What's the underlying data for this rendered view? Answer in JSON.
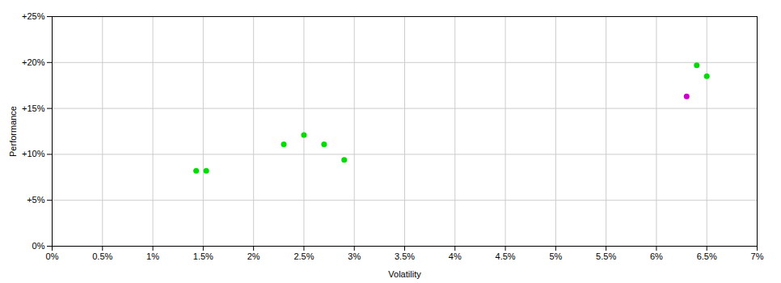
{
  "chart_data": {
    "type": "scatter",
    "xlabel": "Volatility",
    "ylabel": "Performance",
    "xlim": [
      0.0,
      0.07
    ],
    "ylim": [
      0.0,
      0.25
    ],
    "xticks": [
      {
        "value": 0.0,
        "label": "0%"
      },
      {
        "value": 0.005,
        "label": "0.5%"
      },
      {
        "value": 0.01,
        "label": "1%"
      },
      {
        "value": 0.015,
        "label": "1.5%"
      },
      {
        "value": 0.02,
        "label": "2%"
      },
      {
        "value": 0.025,
        "label": "2.5%"
      },
      {
        "value": 0.03,
        "label": "3%"
      },
      {
        "value": 0.035,
        "label": "3.5%"
      },
      {
        "value": 0.04,
        "label": "4%"
      },
      {
        "value": 0.045,
        "label": "4.5%"
      },
      {
        "value": 0.05,
        "label": "5%"
      },
      {
        "value": 0.055,
        "label": "5.5%"
      },
      {
        "value": 0.06,
        "label": "6%"
      },
      {
        "value": 0.065,
        "label": "6.5%"
      },
      {
        "value": 0.07,
        "label": "7%"
      }
    ],
    "yticks": [
      {
        "value": 0.0,
        "label": "0%"
      },
      {
        "value": 0.05,
        "label": "+5%"
      },
      {
        "value": 0.1,
        "label": "+10%"
      },
      {
        "value": 0.15,
        "label": "+15%"
      },
      {
        "value": 0.2,
        "label": "+20%"
      },
      {
        "value": 0.25,
        "label": "+25%"
      }
    ],
    "grid": true,
    "series": [
      {
        "color": "#00dd00",
        "x": [
          0.0143,
          0.0153,
          0.023,
          0.025,
          0.027,
          0.029,
          0.064,
          0.065
        ],
        "values": [
          0.082,
          0.082,
          0.111,
          0.121,
          0.111,
          0.094,
          0.197,
          0.185
        ]
      },
      {
        "color": "#cc00cc",
        "x": [
          0.063
        ],
        "values": [
          0.163
        ]
      }
    ]
  }
}
